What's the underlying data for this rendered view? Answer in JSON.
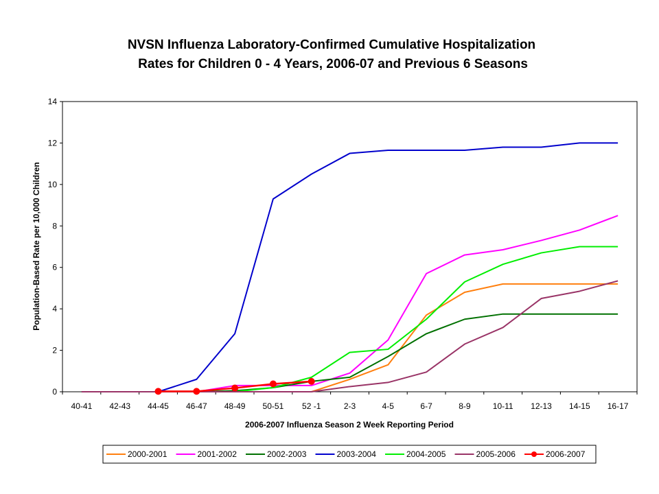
{
  "chart_data": {
    "type": "line",
    "title": "NVSN Influenza Laboratory-Confirmed Cumulative Hospitalization",
    "subtitle": "Rates for Children 0 - 4 Years, 2006-07 and Previous 6 Seasons",
    "xlabel": "2006-2007 Influenza Season 2 Week Reporting Period",
    "ylabel": "Population-Based Rate per 10,000 Children",
    "ylim": [
      0,
      14
    ],
    "yticks": [
      0,
      2,
      4,
      6,
      8,
      10,
      12,
      14
    ],
    "grid": false,
    "legend_position": "bottom",
    "categories": [
      "40-41",
      "42-43",
      "44-45",
      "46-47",
      "48-49",
      "50-51",
      "52 -1",
      "2-3",
      "4-5",
      "6-7",
      "8-9",
      "10-11",
      "12-13",
      "14-15",
      "16-17"
    ],
    "series": [
      {
        "name": "2000-2001",
        "color": "#FF7F0E",
        "marker": false,
        "values": [
          0,
          0,
          0,
          0,
          0,
          0,
          0,
          0.6,
          1.3,
          3.7,
          4.8,
          5.2,
          5.2,
          5.2,
          5.2
        ]
      },
      {
        "name": "2001-2002",
        "color": "#FF00FF",
        "marker": false,
        "values": [
          0,
          0,
          0,
          0,
          0.3,
          0.3,
          0.3,
          0.9,
          2.5,
          5.7,
          6.6,
          6.85,
          7.3,
          7.8,
          8.5
        ]
      },
      {
        "name": "2002-2003",
        "color": "#007000",
        "marker": false,
        "values": [
          0,
          0,
          0,
          0,
          0.05,
          0.2,
          0.5,
          0.7,
          1.7,
          2.8,
          3.5,
          3.75,
          3.75,
          3.75,
          3.75
        ]
      },
      {
        "name": "2003-2004",
        "color": "#0000CC",
        "marker": false,
        "values": [
          0,
          0,
          0,
          0.6,
          2.8,
          9.3,
          10.5,
          11.5,
          11.65,
          11.65,
          11.65,
          11.8,
          11.8,
          12.0,
          12.0
        ]
      },
      {
        "name": "2004-2005",
        "color": "#00EE00",
        "marker": false,
        "values": [
          0,
          0,
          0,
          0,
          0,
          0.2,
          0.7,
          1.9,
          2.05,
          3.5,
          5.3,
          6.15,
          6.7,
          7.0,
          7.0
        ]
      },
      {
        "name": "2005-2006",
        "color": "#993366",
        "marker": false,
        "values": [
          0,
          0,
          0,
          0,
          0,
          0,
          0,
          0.25,
          0.45,
          0.95,
          2.3,
          3.1,
          4.5,
          4.85,
          5.35
        ]
      },
      {
        "name": "2006-2007",
        "color": "#FF0000",
        "marker": true,
        "values": [
          null,
          null,
          0.02,
          0.02,
          0.18,
          0.38,
          0.5,
          null,
          null,
          null,
          null,
          null,
          null,
          null,
          null
        ]
      }
    ]
  }
}
